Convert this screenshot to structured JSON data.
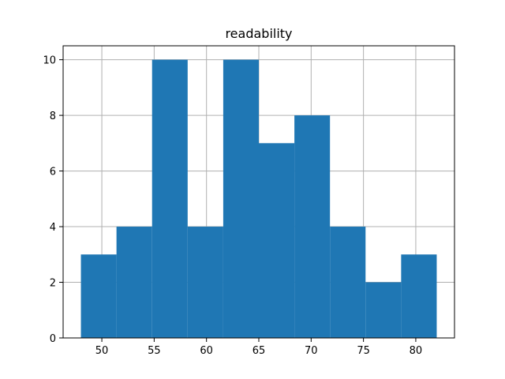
{
  "chart_data": {
    "type": "bar",
    "title": "readability",
    "xlabel": "",
    "ylabel": "",
    "grid": true,
    "bar_color": "#1f77b4",
    "bin_edges": [
      48.0,
      51.4,
      54.8,
      58.2,
      61.6,
      65.0,
      68.4,
      71.8,
      75.2,
      78.6,
      82.0
    ],
    "values": [
      3,
      4,
      10,
      4,
      10,
      7,
      8,
      4,
      2,
      3
    ],
    "xlim": [
      46.3,
      83.7
    ],
    "ylim": [
      0,
      10.5
    ],
    "xticks": [
      50,
      55,
      60,
      65,
      70,
      75,
      80
    ],
    "yticks": [
      0,
      2,
      4,
      6,
      8,
      10
    ]
  }
}
